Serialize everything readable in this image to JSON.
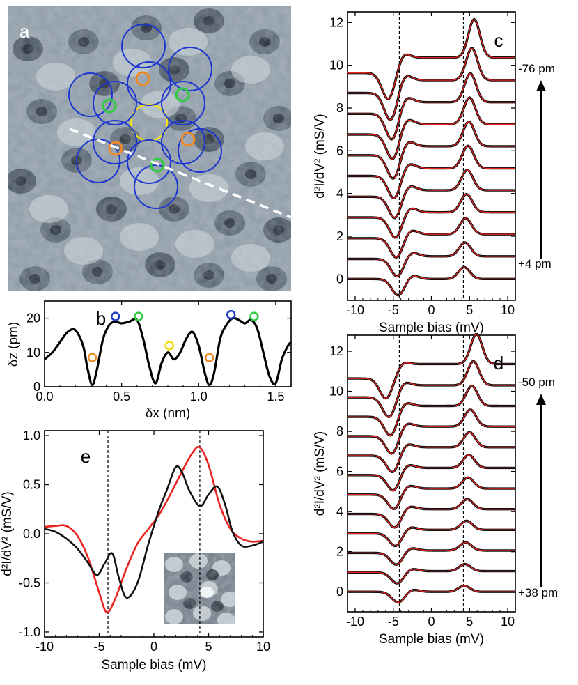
{
  "chart_data": [
    {
      "panel": "a",
      "type": "image",
      "label": "a",
      "description_marks": [
        "blue circles",
        "orange circles",
        "green circles",
        "yellow circle",
        "dashed line cut"
      ]
    },
    {
      "panel": "b",
      "type": "line",
      "label": "b",
      "xlabel": "δx (nm)",
      "ylabel": "δz (pm)",
      "xlim": [
        0.0,
        1.6
      ],
      "ylim": [
        0,
        25
      ],
      "xticks": [
        "0.0",
        "0.5",
        "1.0",
        "1.5"
      ],
      "yticks": [
        "0",
        "10",
        "20"
      ],
      "x": [
        0.0,
        0.05,
        0.1,
        0.15,
        0.2,
        0.25,
        0.28,
        0.31,
        0.34,
        0.38,
        0.42,
        0.46,
        0.5,
        0.55,
        0.6,
        0.64,
        0.68,
        0.72,
        0.76,
        0.8,
        0.84,
        0.88,
        0.92,
        0.96,
        1.0,
        1.04,
        1.07,
        1.1,
        1.14,
        1.18,
        1.22,
        1.26,
        1.3,
        1.34,
        1.38,
        1.42,
        1.46,
        1.5,
        1.54,
        1.58,
        1.6
      ],
      "y": [
        8,
        10,
        13,
        16,
        16.5,
        12,
        5,
        0.5,
        5,
        14,
        18,
        19,
        18.5,
        19,
        19.5,
        14,
        6,
        1,
        7,
        10,
        8,
        10,
        14,
        16,
        12,
        4,
        0.5,
        4,
        14,
        18,
        20,
        19.5,
        18.5,
        19.5,
        17,
        10,
        3,
        1,
        8,
        12,
        13
      ],
      "markers": [
        {
          "x": 0.31,
          "y": 8.5,
          "color": "#f08a24"
        },
        {
          "x": 0.46,
          "y": 20.5,
          "color": "#1f3cc8"
        },
        {
          "x": 0.61,
          "y": 20.5,
          "color": "#2ecc40"
        },
        {
          "x": 0.81,
          "y": 12,
          "color": "#f0e010"
        },
        {
          "x": 1.07,
          "y": 8.5,
          "color": "#f08a24"
        },
        {
          "x": 1.21,
          "y": 21,
          "color": "#1f3cc8"
        },
        {
          "x": 1.36,
          "y": 20.5,
          "color": "#2ecc40"
        }
      ]
    },
    {
      "panel": "c",
      "type": "line",
      "label": "c",
      "xlabel": "Sample bias (mV)",
      "ylabel": "d²I/dV² (mS/V)",
      "xlim": [
        -11,
        11
      ],
      "ylim": [
        -1,
        12.5
      ],
      "xticks": [
        "-10",
        "-5",
        "0",
        "5",
        "10"
      ],
      "yticks": [
        "0",
        "2",
        "4",
        "6",
        "8",
        "10",
        "12"
      ],
      "dashed_x": [
        -4.2,
        4.2
      ],
      "top_label": "-76 pm",
      "bottom_label": "+4 pm",
      "series": [
        {
          "offset": 0,
          "dip_x": -4.3,
          "dip": 0.8,
          "peak_x": 4.3,
          "peak": 0.55,
          "slope": 0.0
        },
        {
          "offset": 1,
          "dip_x": -4.4,
          "dip": 0.9,
          "peak_x": 4.4,
          "peak": 0.65,
          "slope": 0.02
        },
        {
          "offset": 2,
          "dip_x": -4.5,
          "dip": 1.0,
          "peak_x": 4.5,
          "peak": 0.75,
          "slope": 0.03
        },
        {
          "offset": 3,
          "dip_x": -4.6,
          "dip": 1.05,
          "peak_x": 4.6,
          "peak": 0.85,
          "slope": 0.04
        },
        {
          "offset": 4,
          "dip_x": -4.7,
          "dip": 1.1,
          "peak_x": 4.7,
          "peak": 0.95,
          "slope": 0.05
        },
        {
          "offset": 5,
          "dip_x": -4.8,
          "dip": 1.15,
          "peak_x": 4.8,
          "peak": 1.05,
          "slope": 0.06
        },
        {
          "offset": 6,
          "dip_x": -4.9,
          "dip": 1.2,
          "peak_x": 4.9,
          "peak": 1.15,
          "slope": 0.07
        },
        {
          "offset": 7,
          "dip_x": -5.0,
          "dip": 1.25,
          "peak_x": 5.0,
          "peak": 1.25,
          "slope": 0.08
        },
        {
          "offset": 8,
          "dip_x": -5.1,
          "dip": 1.3,
          "peak_x": 5.1,
          "peak": 1.35,
          "slope": 0.09
        },
        {
          "offset": 9,
          "dip_x": -5.3,
          "dip": 1.35,
          "peak_x": 5.3,
          "peak": 1.5,
          "slope": 0.1
        },
        {
          "offset": 10,
          "dip_x": -5.6,
          "dip": 1.3,
          "peak_x": 5.6,
          "peak": 1.8,
          "slope": 0.12
        }
      ]
    },
    {
      "panel": "d",
      "type": "line",
      "label": "d",
      "xlabel": "Sample bias (mV)",
      "ylabel": "d²I/dV² (mS/V)",
      "xlim": [
        -11,
        11
      ],
      "ylim": [
        -1,
        12.8
      ],
      "xticks": [
        "-10",
        "-5",
        "0",
        "5",
        "10"
      ],
      "yticks": [
        "0",
        "2",
        "4",
        "6",
        "8",
        "10",
        "12"
      ],
      "dashed_x": [
        -4.2,
        4.2
      ],
      "top_label": "-50 pm",
      "bottom_label": "+38 pm",
      "series": [
        {
          "offset": 0,
          "dip_x": -4.3,
          "dip": 0.55,
          "peak_x": 4.3,
          "peak": 0.3,
          "slope": 0.0
        },
        {
          "offset": 1,
          "dip_x": -4.4,
          "dip": 0.6,
          "peak_x": 4.4,
          "peak": 0.35,
          "slope": 0.01
        },
        {
          "offset": 2,
          "dip_x": -4.5,
          "dip": 0.65,
          "peak_x": 4.5,
          "peak": 0.4,
          "slope": 0.02
        },
        {
          "offset": 3,
          "dip_x": -4.6,
          "dip": 0.7,
          "peak_x": 4.6,
          "peak": 0.45,
          "slope": 0.03
        },
        {
          "offset": 4,
          "dip_x": -4.7,
          "dip": 0.75,
          "peak_x": 4.7,
          "peak": 0.5,
          "slope": 0.04
        },
        {
          "offset": 5,
          "dip_x": -4.8,
          "dip": 0.8,
          "peak_x": 4.8,
          "peak": 0.55,
          "slope": 0.05
        },
        {
          "offset": 6,
          "dip_x": -4.9,
          "dip": 0.85,
          "peak_x": 4.9,
          "peak": 0.65,
          "slope": 0.06
        },
        {
          "offset": 7,
          "dip_x": -5.0,
          "dip": 0.9,
          "peak_x": 5.0,
          "peak": 0.75,
          "slope": 0.07
        },
        {
          "offset": 8,
          "dip_x": -5.1,
          "dip": 0.95,
          "peak_x": 5.1,
          "peak": 0.85,
          "slope": 0.08
        },
        {
          "offset": 9,
          "dip_x": -5.3,
          "dip": 1.0,
          "peak_x": 5.3,
          "peak": 1.0,
          "slope": 0.09
        },
        {
          "offset": 10,
          "dip_x": -5.5,
          "dip": 1.05,
          "peak_x": 5.5,
          "peak": 1.2,
          "slope": 0.1
        },
        {
          "offset": 11,
          "dip_x": -5.9,
          "dip": 1.05,
          "peak_x": 5.9,
          "peak": 1.5,
          "slope": 0.12
        }
      ]
    },
    {
      "panel": "e",
      "type": "line",
      "label": "e",
      "xlabel": "Sample bias (mV)",
      "ylabel": "d²I/dV² (mS/V)",
      "xlim": [
        -10,
        10
      ],
      "ylim": [
        -1.05,
        1.05
      ],
      "xticks": [
        "-10",
        "-5",
        "0",
        "5",
        "10"
      ],
      "yticks": [
        "-1.0",
        "-0.5",
        "0.0",
        "0.5",
        "1.0"
      ],
      "dashed_x": [
        -4.2,
        4.2
      ],
      "series": [
        {
          "name": "red",
          "color": "#e8221f",
          "x": [
            -10,
            -9,
            -8,
            -7,
            -6,
            -5,
            -4.3,
            -3.5,
            -2.5,
            -1.5,
            -0.5,
            0.5,
            1.5,
            2.5,
            3.5,
            4.2,
            5,
            6,
            7,
            8,
            9,
            10
          ],
          "y": [
            0.07,
            0.08,
            0.08,
            -0.02,
            -0.25,
            -0.6,
            -0.8,
            -0.65,
            -0.35,
            -0.1,
            0.05,
            0.2,
            0.4,
            0.62,
            0.82,
            0.88,
            0.7,
            0.3,
            0.05,
            -0.05,
            -0.08,
            -0.07
          ]
        },
        {
          "name": "black",
          "color": "#111111",
          "x": [
            -10,
            -9,
            -8,
            -7,
            -6,
            -5.2,
            -4.5,
            -3.8,
            -3.2,
            -2.5,
            -1.5,
            -0.5,
            0.5,
            1.2,
            2.0,
            2.6,
            3.2,
            4.2,
            5.0,
            5.8,
            6.5,
            7.2,
            8,
            9,
            10
          ],
          "y": [
            0.05,
            0.02,
            -0.05,
            -0.15,
            -0.3,
            -0.42,
            -0.3,
            -0.2,
            -0.45,
            -0.65,
            -0.5,
            -0.1,
            0.25,
            0.45,
            0.68,
            0.62,
            0.45,
            0.28,
            0.4,
            0.48,
            0.3,
            0.02,
            -0.12,
            -0.12,
            -0.08
          ]
        }
      ],
      "inset": "image"
    }
  ]
}
